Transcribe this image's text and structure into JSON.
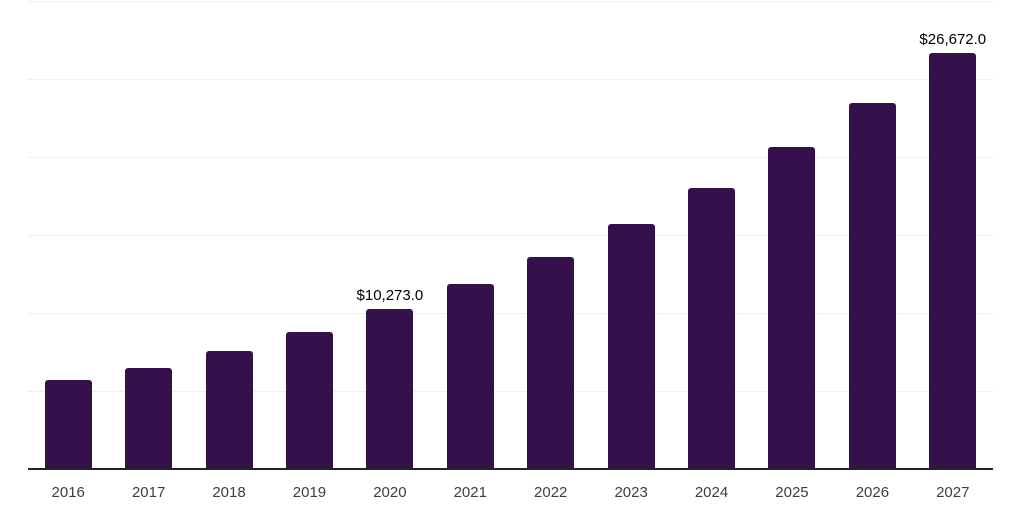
{
  "chart_data": {
    "type": "bar",
    "title": "",
    "xlabel": "",
    "ylabel": "",
    "categories": [
      "2016",
      "2017",
      "2018",
      "2019",
      "2020",
      "2021",
      "2022",
      "2023",
      "2024",
      "2025",
      "2026",
      "2027"
    ],
    "values": [
      5700,
      6500,
      7560,
      8780,
      10273,
      11860,
      13590,
      15700,
      18000,
      20640,
      23460,
      26672
    ],
    "annotations": [
      {
        "category": "2020",
        "index": 4,
        "text": "$10,273.0",
        "value": 10273.0
      },
      {
        "category": "2027",
        "index": 11,
        "text": "$26,672.0",
        "value": 26672.0
      }
    ],
    "ylim": [
      0,
      30000
    ],
    "grid_step": 5000,
    "grid": "horizontal",
    "legend_position": "none",
    "colors": {
      "bar": "#34114b",
      "axis_line": "#242424",
      "gridline": "#efefef",
      "tick_label": "#3d3d3d",
      "data_label": "#000000",
      "background": "#ffffff"
    }
  }
}
